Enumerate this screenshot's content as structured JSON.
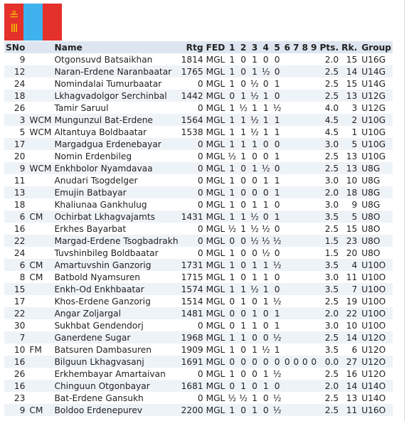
{
  "flag": {
    "colors": {
      "red": "#e4312b",
      "blue": "#3fb2ee",
      "gold": "#f4c400"
    },
    "icon": "mongolia-flag-icon"
  },
  "headers": [
    "SNo",
    "",
    "Name",
    "Rtg",
    "FED",
    "1",
    "2",
    "3",
    "4",
    "5",
    "6",
    "7",
    "8",
    "9",
    "Pts.",
    "Rk.",
    "Group"
  ],
  "rows": [
    [
      "9",
      "",
      "Otgonsuvd Batsaikhan",
      "1814",
      "MGL",
      "1",
      "0",
      "1",
      "0",
      "0",
      "",
      "",
      "",
      "",
      "2.0",
      "15",
      "U16G"
    ],
    [
      "12",
      "",
      "Naran-Erdene Naranbaatar",
      "1765",
      "MGL",
      "1",
      "0",
      "1",
      "½",
      "0",
      "",
      "",
      "",
      "",
      "2.5",
      "14",
      "U14G"
    ],
    [
      "24",
      "",
      "Nomindalai Tumurbaatar",
      "0",
      "MGL",
      "1",
      "0",
      "½",
      "0",
      "1",
      "",
      "",
      "",
      "",
      "2.5",
      "15",
      "U14G"
    ],
    [
      "18",
      "",
      "Lkhagvadolgor Serchinbal",
      "1442",
      "MGL",
      "0",
      "1",
      "½",
      "1",
      "0",
      "",
      "",
      "",
      "",
      "2.5",
      "13",
      "U12G"
    ],
    [
      "26",
      "",
      "Tamir Saruul",
      "0",
      "MGL",
      "1",
      "½",
      "1",
      "1",
      "½",
      "",
      "",
      "",
      "",
      "4.0",
      "3",
      "U12G"
    ],
    [
      "3",
      "WCM",
      "Mungunzul Bat-Erdene",
      "1564",
      "MGL",
      "1",
      "1",
      "½",
      "1",
      "1",
      "",
      "",
      "",
      "",
      "4.5",
      "2",
      "U10G"
    ],
    [
      "5",
      "WCM",
      "Altantuya Boldbaatar",
      "1538",
      "MGL",
      "1",
      "1",
      "½",
      "1",
      "1",
      "",
      "",
      "",
      "",
      "4.5",
      "1",
      "U10G"
    ],
    [
      "17",
      "",
      "Margadgua Erdenebayar",
      "0",
      "MGL",
      "1",
      "1",
      "1",
      "0",
      "0",
      "",
      "",
      "",
      "",
      "3.0",
      "5",
      "U10G"
    ],
    [
      "20",
      "",
      "Nomin Erdenbileg",
      "0",
      "MGL",
      "½",
      "1",
      "0",
      "0",
      "1",
      "",
      "",
      "",
      "",
      "2.5",
      "13",
      "U10G"
    ],
    [
      "9",
      "WCM",
      "Enkhbolor Nyamdavaa",
      "0",
      "MGL",
      "1",
      "0",
      "1",
      "½",
      "0",
      "",
      "",
      "",
      "",
      "2.5",
      "13",
      "U8G"
    ],
    [
      "11",
      "",
      "Anudari Tsogdelger",
      "0",
      "MGL",
      "1",
      "0",
      "0",
      "1",
      "1",
      "",
      "",
      "",
      "",
      "3.0",
      "10",
      "U8G"
    ],
    [
      "13",
      "",
      "Emujin Batbayar",
      "0",
      "MGL",
      "1",
      "0",
      "0",
      "0",
      "1",
      "",
      "",
      "",
      "",
      "2.0",
      "18",
      "U8G"
    ],
    [
      "18",
      "",
      "Khaliunaa Gankhulug",
      "0",
      "MGL",
      "1",
      "0",
      "1",
      "1",
      "0",
      "",
      "",
      "",
      "",
      "3.0",
      "9",
      "U8G"
    ],
    [
      "6",
      "CM",
      "Ochirbat Lkhagvajamts",
      "1431",
      "MGL",
      "1",
      "1",
      "½",
      "0",
      "1",
      "",
      "",
      "",
      "",
      "3.5",
      "5",
      "U8O"
    ],
    [
      "16",
      "",
      "Erkhes Bayarbat",
      "0",
      "MGL",
      "½",
      "1",
      "½",
      "½",
      "0",
      "",
      "",
      "",
      "",
      "2.5",
      "15",
      "U8O"
    ],
    [
      "22",
      "",
      "Margad-Erdene Tsogbadrakh",
      "0",
      "MGL",
      "0",
      "0",
      "½",
      "½",
      "½",
      "",
      "",
      "",
      "",
      "1.5",
      "23",
      "U8O"
    ],
    [
      "24",
      "",
      "Tuvshinbileg Boldbaatar",
      "0",
      "MGL",
      "1",
      "0",
      "0",
      "½",
      "0",
      "",
      "",
      "",
      "",
      "1.5",
      "20",
      "U8O"
    ],
    [
      "6",
      "CM",
      "Amartuvshin Ganzorig",
      "1731",
      "MGL",
      "1",
      "0",
      "1",
      "1",
      "½",
      "",
      "",
      "",
      "",
      "3.5",
      "4",
      "U10O"
    ],
    [
      "8",
      "CM",
      "Batbold Nyamsuren",
      "1715",
      "MGL",
      "1",
      "0",
      "1",
      "1",
      "0",
      "",
      "",
      "",
      "",
      "3.0",
      "11",
      "U10O"
    ],
    [
      "15",
      "",
      "Enkh-Od Enkhbaatar",
      "1574",
      "MGL",
      "1",
      "1",
      "½",
      "1",
      "0",
      "",
      "",
      "",
      "",
      "3.5",
      "7",
      "U10O"
    ],
    [
      "17",
      "",
      "Khos-Erdene Ganzorig",
      "1514",
      "MGL",
      "0",
      "1",
      "0",
      "1",
      "½",
      "",
      "",
      "",
      "",
      "2.5",
      "19",
      "U10O"
    ],
    [
      "22",
      "",
      "Angar Zoljargal",
      "1481",
      "MGL",
      "0",
      "0",
      "1",
      "0",
      "1",
      "",
      "",
      "",
      "",
      "2.0",
      "22",
      "U10O"
    ],
    [
      "30",
      "",
      "Sukhbat Gendendorj",
      "0",
      "MGL",
      "0",
      "1",
      "1",
      "0",
      "1",
      "",
      "",
      "",
      "",
      "3.0",
      "10",
      "U10O"
    ],
    [
      "7",
      "",
      "Ganerdene Sugar",
      "1968",
      "MGL",
      "1",
      "1",
      "0",
      "0",
      "½",
      "",
      "",
      "",
      "",
      "2.5",
      "14",
      "U12O"
    ],
    [
      "10",
      "FM",
      "Batsuren Dambasuren",
      "1909",
      "MGL",
      "1",
      "0",
      "1",
      "½",
      "1",
      "",
      "",
      "",
      "",
      "3.5",
      "6",
      "U12O"
    ],
    [
      "16",
      "",
      "Bilguun Lkhagvasanj",
      "1691",
      "MGL",
      "0",
      "0",
      "0",
      "0",
      "0",
      "0",
      "0",
      "0",
      "0",
      "0.0",
      "27",
      "U12O"
    ],
    [
      "26",
      "",
      "Erkhembayar Amartaivan",
      "0",
      "MGL",
      "1",
      "0",
      "0",
      "1",
      "½",
      "",
      "",
      "",
      "",
      "2.5",
      "16",
      "U12O"
    ],
    [
      "16",
      "",
      "Chinguun Otgonbayar",
      "1681",
      "MGL",
      "0",
      "1",
      "0",
      "1",
      "0",
      "",
      "",
      "",
      "",
      "2.0",
      "14",
      "U14O"
    ],
    [
      "23",
      "",
      "Bat-Erdene Gansukh",
      "0",
      "MGL",
      "½",
      "½",
      "1",
      "0",
      "½",
      "",
      "",
      "",
      "",
      "2.5",
      "13",
      "U14O"
    ],
    [
      "9",
      "CM",
      "Boldoo Erdenepurev",
      "2200",
      "MGL",
      "1",
      "0",
      "1",
      "0",
      "½",
      "",
      "",
      "",
      "",
      "2.5",
      "11",
      "U16O"
    ]
  ]
}
